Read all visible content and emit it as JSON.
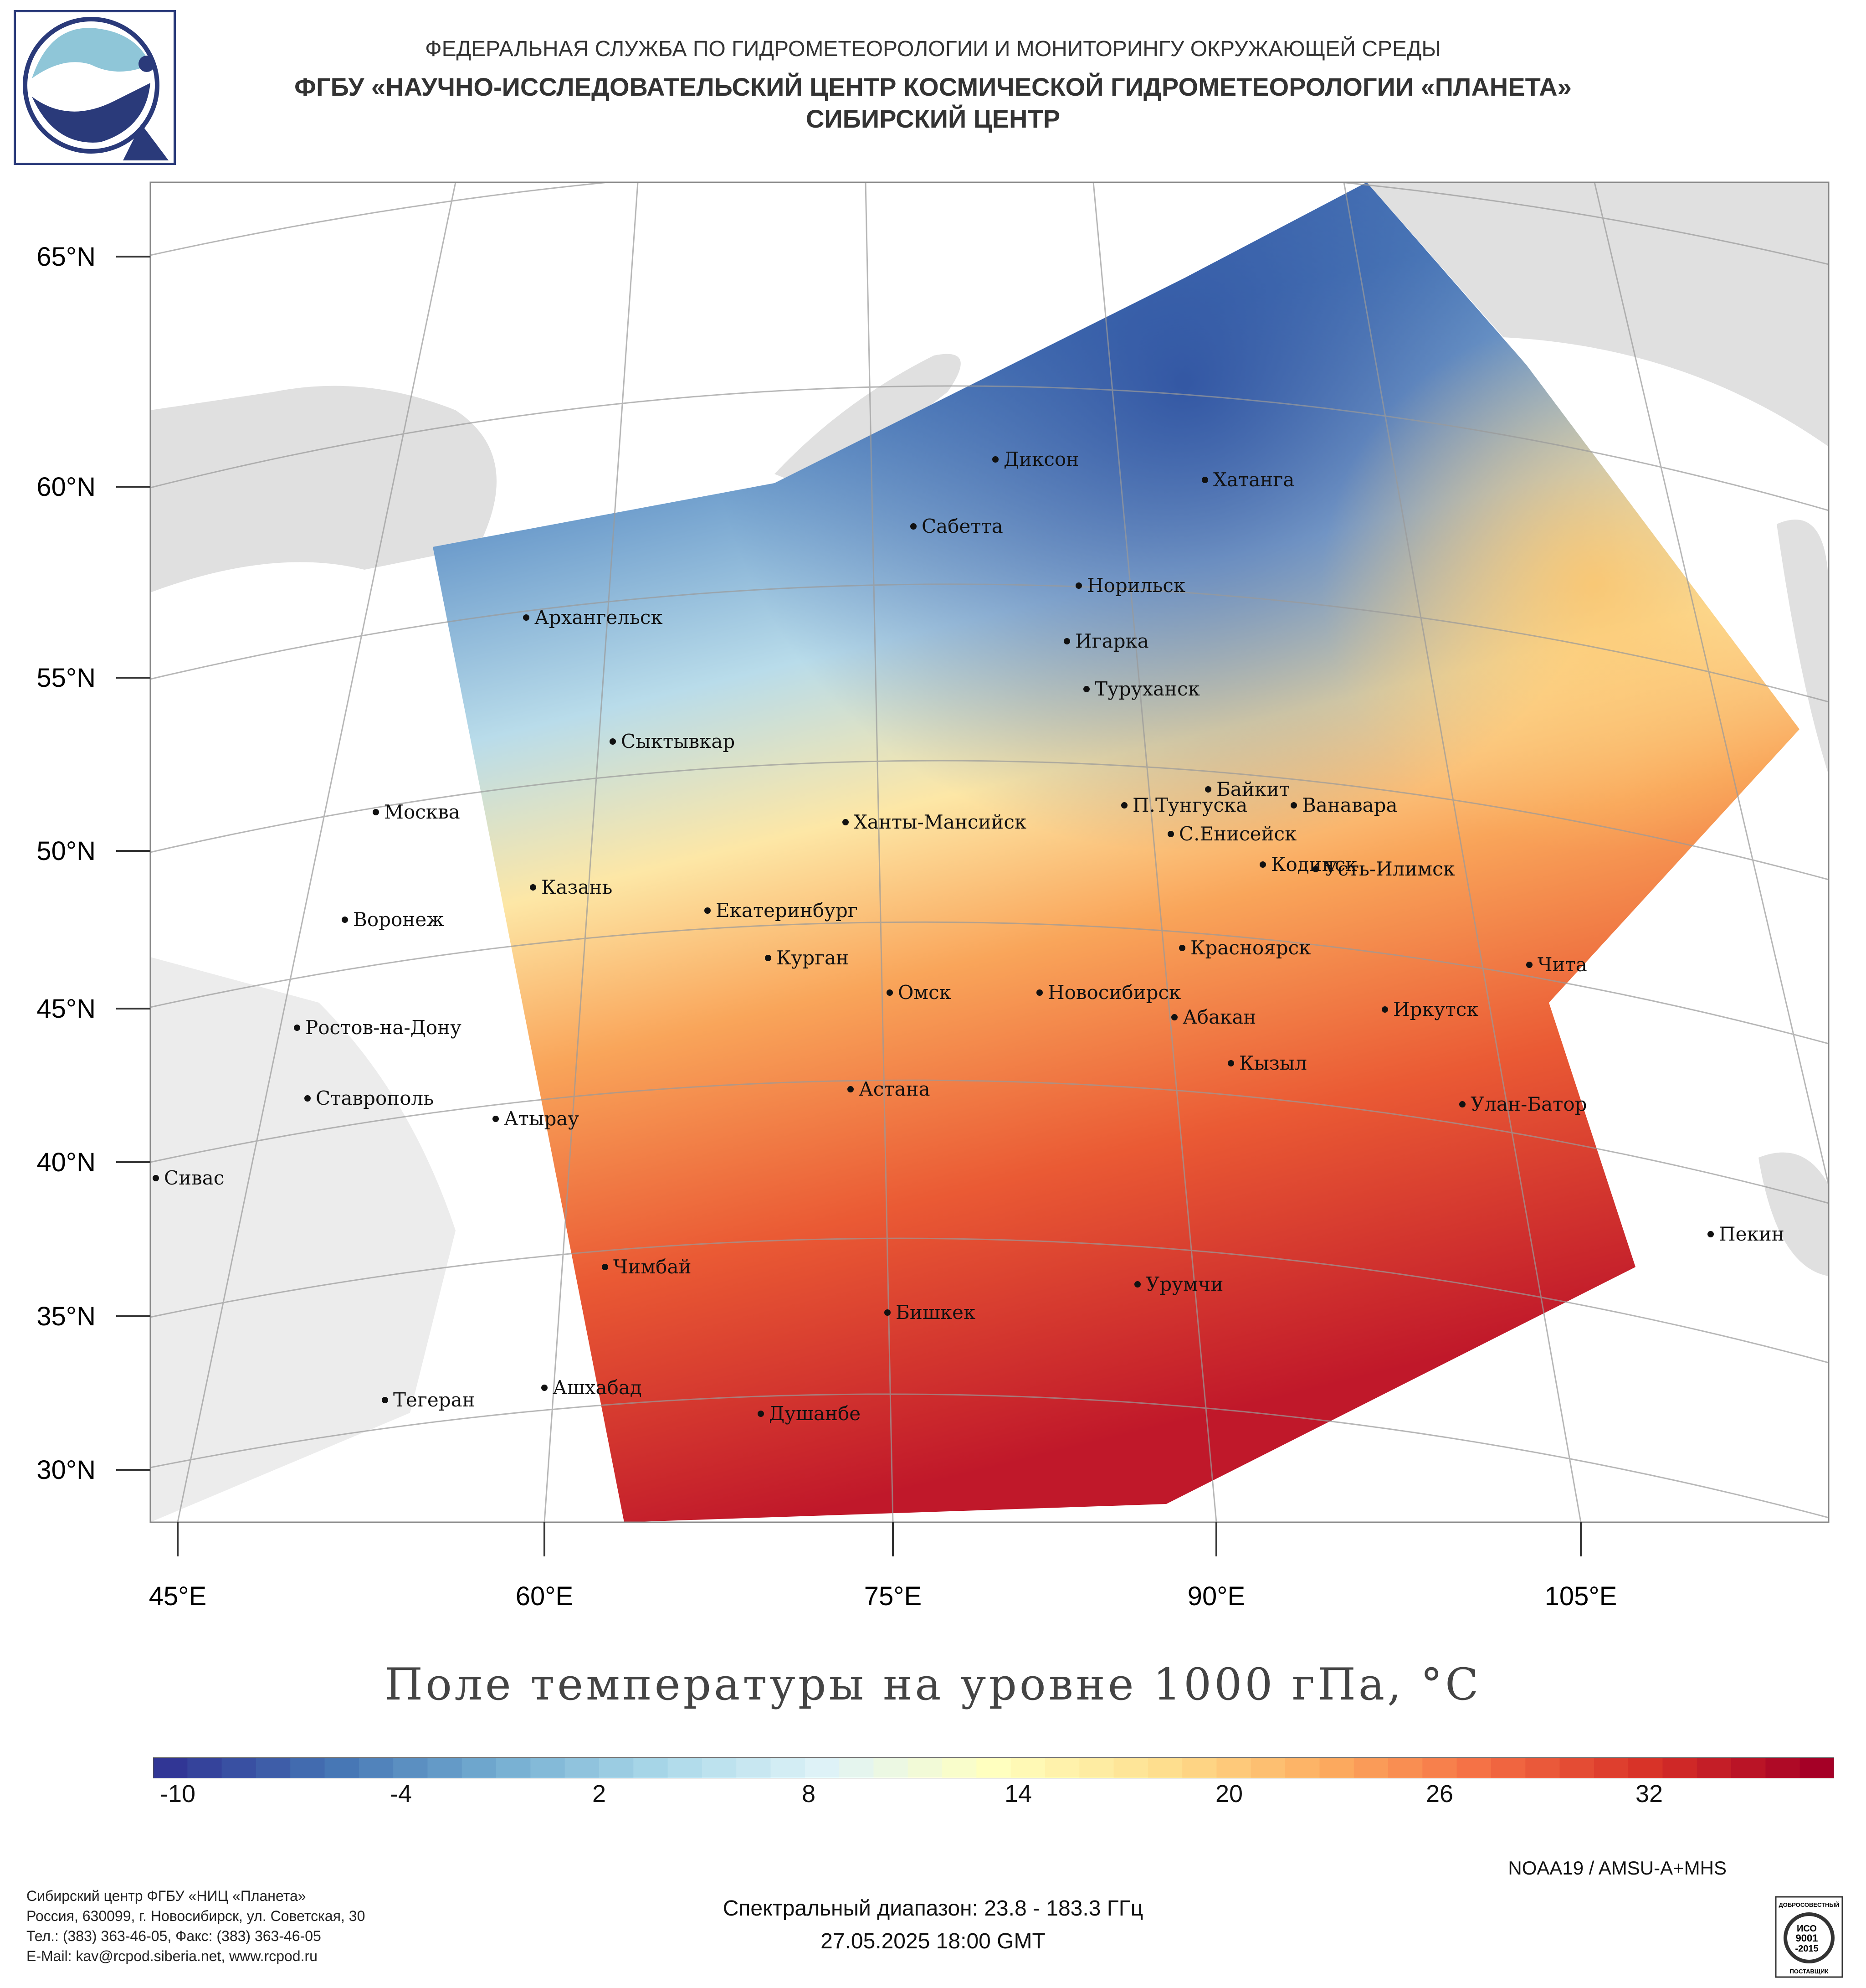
{
  "header": {
    "line1": "ФЕДЕРАЛЬНАЯ СЛУЖБА ПО ГИДРОМЕТЕОРОЛОГИИ И МОНИТОРИНГУ ОКРУЖАЮЩЕЙ СРЕДЫ",
    "line2": "ФГБУ «НАУЧНО-ИССЛЕДОВАТЕЛЬСКИЙ ЦЕНТР КОСМИЧЕСКОЙ ГИДРОМЕТЕОРОЛОГИИ «ПЛАНЕТА»",
    "line3": "СИБИРСКИЙ ЦЕНТР"
  },
  "map": {
    "lat_labels": [
      "65°N",
      "60°N",
      "55°N",
      "50°N",
      "45°N",
      "40°N",
      "35°N",
      "30°N"
    ],
    "lon_labels": [
      "45°E",
      "60°E",
      "75°E",
      "90°E",
      "105°E"
    ],
    "cities": [
      {
        "name": "Диксон"
      },
      {
        "name": "Хатанга"
      },
      {
        "name": "Сабетта"
      },
      {
        "name": "Норильск"
      },
      {
        "name": "Игарка"
      },
      {
        "name": "Архангельск"
      },
      {
        "name": "Туруханск"
      },
      {
        "name": "Сыктывкар"
      },
      {
        "name": "Байкит"
      },
      {
        "name": "П.Тунгуска"
      },
      {
        "name": "Ванавара"
      },
      {
        "name": "Москва"
      },
      {
        "name": "Ханты-Мансийск"
      },
      {
        "name": "С.Енисейск"
      },
      {
        "name": "Кодинск"
      },
      {
        "name": "Усть-Илимск"
      },
      {
        "name": "Казань"
      },
      {
        "name": "Екатеринбург"
      },
      {
        "name": "Воронеж"
      },
      {
        "name": "Курган"
      },
      {
        "name": "Красноярск"
      },
      {
        "name": "Чита"
      },
      {
        "name": "Омск"
      },
      {
        "name": "Новосибирск"
      },
      {
        "name": "Иркутск"
      },
      {
        "name": "Абакан"
      },
      {
        "name": "Ростов-на-Дону"
      },
      {
        "name": "Кызыл"
      },
      {
        "name": "Ставрополь"
      },
      {
        "name": "Астана"
      },
      {
        "name": "Улан-Батор"
      },
      {
        "name": "Атырау"
      },
      {
        "name": "Сивас"
      },
      {
        "name": "Пекин"
      },
      {
        "name": "Чимбай"
      },
      {
        "name": "Урумчи"
      },
      {
        "name": "Бишкек"
      },
      {
        "name": "Ашхабад"
      },
      {
        "name": "Тегеран"
      },
      {
        "name": "Душанбе"
      }
    ]
  },
  "title": "Поле температуры на уровне 1000 гПа, °C",
  "colorbar": {
    "min": -13,
    "max": 36,
    "ticks": [
      "-10",
      "-4",
      "2",
      "8",
      "14",
      "20",
      "26",
      "32"
    ],
    "colors": [
      "#313695",
      "#4575b4",
      "#74add1",
      "#abd9e9",
      "#e0f3f8",
      "#ffffbf",
      "#fee090",
      "#fdae61",
      "#f46d43",
      "#d73027",
      "#a50026"
    ]
  },
  "satellite": "NOAA19 / AMSU-A+MHS",
  "footer": {
    "lines": [
      "Сибирский центр ФГБУ «НИЦ «Планета»",
      "Россия, 630099, г. Новосибирск, ул. Советская, 30",
      "Тел.: (383) 363-46-05, Факс: (383) 363-46-05",
      "E-Mail: kav@rcpod.siberia.net, www.rcpod.ru"
    ]
  },
  "spectral_range": "Спектральный диапазон: 23.8 - 183.3 ГГц",
  "datetime": "27.05.2025 18:00 GMT",
  "iso_badge": {
    "top": "ДОБРОСОВЕСТНЫЙ",
    "mid1": "ИСО",
    "mid2": "9001",
    "mid3": "-2015",
    "bottom": "ПОСТАВЩИК"
  }
}
